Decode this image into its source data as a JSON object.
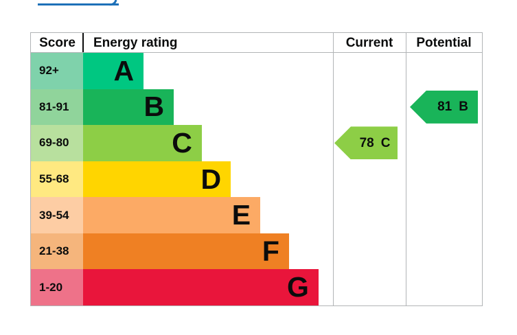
{
  "page": {
    "background": "#ffffff",
    "link_color": "#1d70b8",
    "border_color": "#b1b4b6",
    "text_color": "#0b0c0c"
  },
  "table": {
    "headers": {
      "score": "Score",
      "rating": "Energy rating",
      "current": "Current",
      "potential": "Potential"
    },
    "bands": [
      {
        "letter": "A",
        "score": "92+",
        "color": "#00c781",
        "score_bg": "#7fd2ab",
        "width_pct": 24.2
      },
      {
        "letter": "B",
        "score": "81-91",
        "color": "#19b459",
        "score_bg": "#90d49b",
        "width_pct": 36.3
      },
      {
        "letter": "C",
        "score": "69-80",
        "color": "#8dce46",
        "score_bg": "#b8e09e",
        "width_pct": 47.5
      },
      {
        "letter": "D",
        "score": "55-68",
        "color": "#ffd500",
        "score_bg": "#ffe981",
        "width_pct": 59.1
      },
      {
        "letter": "E",
        "score": "39-54",
        "color": "#fcaa65",
        "score_bg": "#fdcda4",
        "width_pct": 70.9
      },
      {
        "letter": "F",
        "score": "21-38",
        "color": "#ef8023",
        "score_bg": "#f5b57c",
        "width_pct": 82.4
      },
      {
        "letter": "G",
        "score": "1-20",
        "color": "#e9153b",
        "score_bg": "#ee7289",
        "width_pct": 94.2
      }
    ],
    "current": {
      "value": "78",
      "band": "C",
      "color": "#8dce46",
      "row_index": 2
    },
    "potential": {
      "value": "81",
      "band": "B",
      "color": "#19b459",
      "row_index": 1
    }
  },
  "chart_data": {
    "type": "bar",
    "title": "",
    "columns": [
      "Score",
      "Energy rating",
      "Current",
      "Potential"
    ],
    "categories": [
      "A",
      "B",
      "C",
      "D",
      "E",
      "F",
      "G"
    ],
    "score_ranges": [
      "92+",
      "81-91",
      "69-80",
      "55-68",
      "39-54",
      "21-38",
      "1-20"
    ],
    "band_colors": [
      "#00c781",
      "#19b459",
      "#8dce46",
      "#ffd500",
      "#fcaa65",
      "#ef8023",
      "#e9153b"
    ],
    "bar_widths_pct_of_column": [
      24.2,
      36.3,
      47.5,
      59.1,
      70.9,
      82.4,
      94.2
    ],
    "current": {
      "value": 78,
      "band": "C"
    },
    "potential": {
      "value": 81,
      "band": "B"
    },
    "grid": false,
    "legend_position": "none"
  }
}
